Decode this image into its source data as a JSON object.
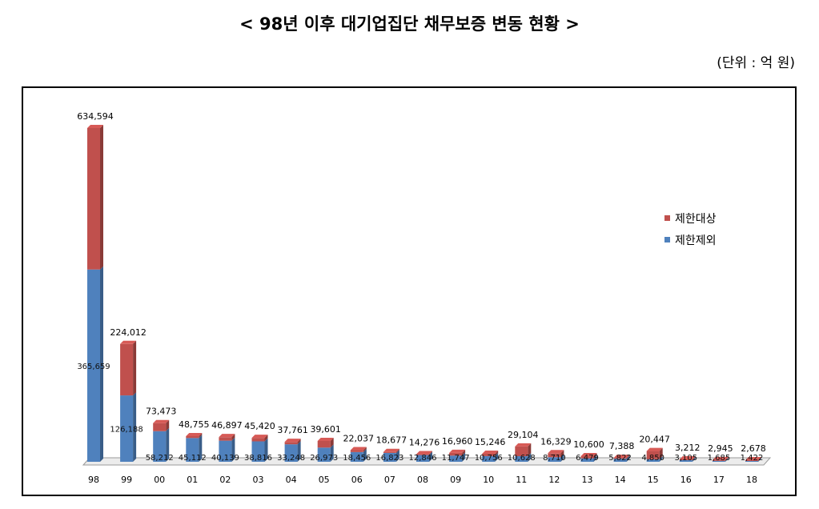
{
  "title": "< 98년 이후 대기업집단 채무보증 변동 현황 >",
  "unit_label": "(단위 : 억 원)",
  "chart_data": {
    "type": "bar",
    "stacked": true,
    "categories": [
      "98",
      "99",
      "00",
      "01",
      "02",
      "03",
      "04",
      "05",
      "06",
      "07",
      "08",
      "09",
      "10",
      "11",
      "12",
      "13",
      "14",
      "15",
      "16",
      "17",
      "18"
    ],
    "totals": [
      634594,
      224012,
      73473,
      48755,
      46897,
      45420,
      37761,
      39601,
      22037,
      18677,
      14276,
      16960,
      15246,
      29104,
      16329,
      10600,
      7388,
      20447,
      3212,
      2945,
      2678
    ],
    "series": [
      {
        "name": "제한제외",
        "color": "#4f81bd",
        "values": [
          365659,
          126188,
          58212,
          45112,
          40139,
          38816,
          33248,
          26973,
          18456,
          16823,
          12846,
          11747,
          10756,
          10628,
          8710,
          6479,
          5822,
          4850,
          3105,
          1685,
          1422
        ]
      },
      {
        "name": "제한대상",
        "color": "#c0504d",
        "values": [
          268935,
          97824,
          15261,
          3643,
          6758,
          6604,
          4513,
          12628,
          3581,
          1854,
          1430,
          5213,
          4490,
          18476,
          7619,
          4121,
          1566,
          15597,
          107,
          1260,
          1256
        ]
      }
    ],
    "legend": "right",
    "grid": false
  }
}
